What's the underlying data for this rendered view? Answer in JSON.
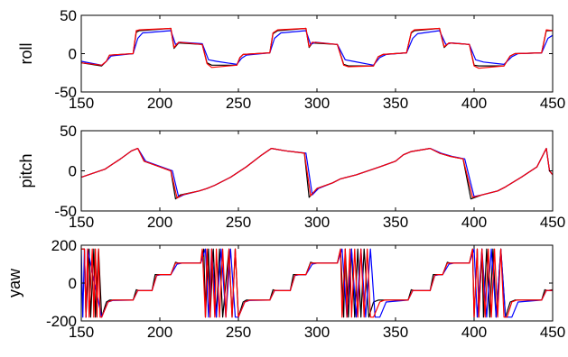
{
  "chart_data": [
    {
      "type": "line",
      "ylabel": "roll",
      "xlim": [
        150,
        450
      ],
      "ylim": [
        -50,
        50
      ],
      "xticks": [
        150,
        200,
        250,
        300,
        350,
        400,
        450
      ],
      "yticks": [
        -50,
        0,
        50
      ],
      "grid": false,
      "series": [
        {
          "color": "#000000",
          "x": [
            150,
            163,
            166,
            168,
            183,
            185,
            187,
            207,
            209,
            212,
            227,
            230,
            233,
            249,
            251,
            253,
            270,
            272,
            275,
            293,
            295,
            297,
            313,
            317,
            320,
            336,
            339,
            342,
            357,
            360,
            362,
            378,
            381,
            384,
            397,
            400,
            403,
            419,
            423,
            426,
            443,
            446,
            450
          ],
          "y": [
            -12,
            -16,
            -10,
            -2,
            0,
            28,
            30,
            33,
            7,
            14,
            12,
            -12,
            -15,
            -15,
            -5,
            -1,
            1,
            26,
            30,
            33,
            8,
            14,
            12,
            -14,
            -16,
            -16,
            -4,
            -1,
            1,
            27,
            30,
            33,
            8,
            14,
            12,
            -15,
            -16,
            -16,
            -3,
            0,
            1,
            30,
            30
          ]
        },
        {
          "color": "#0000ff",
          "x": [
            150,
            163,
            166,
            169,
            183,
            186,
            189,
            207,
            210,
            213,
            227,
            231,
            236,
            249,
            252,
            255,
            270,
            273,
            277,
            293,
            296,
            299,
            313,
            318,
            323,
            336,
            340,
            344,
            357,
            361,
            364,
            378,
            382,
            386,
            397,
            401,
            406,
            419,
            424,
            428,
            443,
            447,
            450
          ],
          "y": [
            -10,
            -15,
            -10,
            -3,
            0,
            20,
            27,
            30,
            12,
            15,
            13,
            -8,
            -10,
            -14,
            -6,
            -2,
            1,
            20,
            27,
            30,
            12,
            15,
            12,
            -8,
            -10,
            -15,
            -5,
            -1,
            1,
            20,
            26,
            30,
            12,
            14,
            12,
            -8,
            -11,
            -14,
            -4,
            0,
            1,
            20,
            24
          ]
        },
        {
          "color": "#ff0000",
          "x": [
            150,
            163,
            166,
            168,
            183,
            185,
            187,
            207,
            209,
            212,
            227,
            230,
            233,
            249,
            251,
            253,
            270,
            272,
            275,
            293,
            295,
            297,
            313,
            317,
            320,
            336,
            339,
            342,
            357,
            360,
            362,
            378,
            381,
            384,
            397,
            400,
            403,
            419,
            423,
            426,
            443,
            446,
            450
          ],
          "y": [
            -12,
            -15,
            -10,
            -2,
            0,
            30,
            31,
            33,
            8,
            15,
            12,
            -13,
            -18,
            -15,
            -5,
            -1,
            1,
            27,
            31,
            33,
            9,
            15,
            12,
            -15,
            -17,
            -16,
            -4,
            -1,
            1,
            28,
            31,
            33,
            9,
            14,
            12,
            -16,
            -19,
            -16,
            -3,
            0,
            1,
            31,
            30
          ]
        }
      ]
    },
    {
      "type": "line",
      "ylabel": "pitch",
      "xlim": [
        150,
        450
      ],
      "ylim": [
        -50,
        50
      ],
      "xticks": [
        150,
        200,
        250,
        300,
        350,
        400,
        450
      ],
      "yticks": [
        -50,
        0,
        50
      ],
      "grid": false,
      "series": [
        {
          "color": "#000000",
          "x": [
            150,
            165,
            175,
            182,
            186,
            190,
            200,
            207,
            210,
            213,
            225,
            230,
            235,
            245,
            255,
            265,
            271,
            280,
            292,
            295,
            300,
            310,
            315,
            325,
            340,
            350,
            355,
            360,
            372,
            378,
            385,
            393,
            398,
            405,
            415,
            420,
            430,
            440,
            446,
            448,
            450
          ],
          "y": [
            -8,
            2,
            15,
            25,
            28,
            12,
            5,
            0,
            -35,
            -30,
            -25,
            -22,
            -18,
            -8,
            5,
            20,
            28,
            25,
            22,
            -33,
            -22,
            -15,
            -10,
            -5,
            5,
            12,
            20,
            24,
            28,
            22,
            18,
            15,
            -35,
            -30,
            -25,
            -20,
            -8,
            5,
            28,
            0,
            -5
          ]
        },
        {
          "color": "#0000ff",
          "x": [
            150,
            165,
            175,
            182,
            186,
            191,
            201,
            208,
            212,
            215,
            225,
            230,
            235,
            245,
            255,
            265,
            271,
            280,
            293,
            297,
            301,
            310,
            315,
            325,
            340,
            350,
            355,
            360,
            372,
            379,
            386,
            394,
            400,
            405,
            415,
            420,
            430,
            440,
            446,
            448,
            450
          ],
          "y": [
            -8,
            2,
            15,
            25,
            28,
            12,
            5,
            0,
            -33,
            -30,
            -25,
            -22,
            -18,
            -8,
            5,
            20,
            28,
            25,
            22,
            -30,
            -22,
            -15,
            -10,
            -5,
            5,
            12,
            20,
            24,
            28,
            22,
            18,
            15,
            -32,
            -30,
            -25,
            -20,
            -8,
            5,
            28,
            0,
            -5
          ]
        },
        {
          "color": "#ff0000",
          "x": [
            150,
            165,
            175,
            182,
            186,
            190,
            200,
            207,
            211,
            214,
            225,
            230,
            235,
            245,
            255,
            265,
            271,
            280,
            292,
            296,
            300,
            310,
            315,
            325,
            340,
            350,
            355,
            360,
            372,
            378,
            385,
            393,
            399,
            405,
            415,
            420,
            430,
            440,
            446,
            448,
            450
          ],
          "y": [
            -8,
            2,
            15,
            25,
            28,
            12,
            5,
            0,
            -34,
            -30,
            -25,
            -22,
            -18,
            -8,
            5,
            20,
            28,
            25,
            22,
            -31,
            -22,
            -15,
            -10,
            -5,
            5,
            12,
            20,
            24,
            28,
            22,
            18,
            15,
            -33,
            -30,
            -25,
            -20,
            -8,
            5,
            28,
            0,
            -5
          ]
        }
      ]
    },
    {
      "type": "line",
      "ylabel": "yaw",
      "xlim": [
        150,
        450
      ],
      "ylim": [
        -200,
        200
      ],
      "xticks": [
        150,
        200,
        250,
        300,
        350,
        400,
        450
      ],
      "yticks": [
        -200,
        0,
        200
      ],
      "grid": false,
      "series": [
        {
          "color": "#000000",
          "x": [
            150,
            152,
            153,
            155,
            156,
            158,
            159,
            161,
            163,
            166,
            168,
            183,
            185,
            187,
            195,
            197,
            199,
            207,
            210,
            212,
            226,
            228,
            229,
            231,
            232,
            234,
            236,
            238,
            240,
            244,
            246,
            248,
            250,
            253,
            255,
            258,
            270,
            272,
            274,
            283,
            285,
            287,
            293,
            296,
            298,
            313,
            315,
            317,
            318,
            320,
            322,
            324,
            326,
            328,
            330,
            333,
            336,
            339,
            342,
            358,
            360,
            362,
            372,
            374,
            376,
            380,
            383,
            385,
            397,
            399,
            400,
            402,
            403,
            405,
            406,
            408,
            410,
            412,
            414,
            417,
            420,
            423,
            426,
            428,
            443,
            445,
            447,
            450
          ],
          "y": [
            180,
            180,
            -180,
            180,
            -180,
            180,
            -180,
            180,
            -180,
            -100,
            -90,
            -90,
            -35,
            -40,
            -40,
            45,
            45,
            45,
            110,
            105,
            105,
            180,
            -180,
            180,
            -180,
            180,
            -180,
            180,
            -180,
            180,
            -180,
            180,
            -180,
            -100,
            -90,
            -90,
            -90,
            -35,
            -40,
            -40,
            45,
            45,
            45,
            110,
            105,
            105,
            180,
            -180,
            180,
            -180,
            180,
            -180,
            180,
            -180,
            180,
            -180,
            -100,
            -90,
            -90,
            -90,
            -35,
            -40,
            -40,
            45,
            45,
            45,
            110,
            105,
            105,
            180,
            -180,
            180,
            -180,
            180,
            -180,
            180,
            -180,
            180,
            -180,
            180,
            -180,
            -100,
            -90,
            -90,
            -90,
            -35,
            -40,
            -35
          ]
        },
        {
          "color": "#0000ff",
          "x": [
            150,
            151,
            152,
            153,
            154,
            163,
            167,
            170,
            183,
            186,
            189,
            195,
            198,
            201,
            207,
            211,
            214,
            226,
            229,
            231,
            233,
            236,
            239,
            242,
            245,
            248,
            250,
            254,
            257,
            270,
            273,
            276,
            283,
            286,
            289,
            293,
            297,
            300,
            313,
            316,
            319,
            322,
            325,
            328,
            331,
            334,
            337,
            340,
            344,
            358,
            361,
            364,
            372,
            375,
            378,
            380,
            384,
            387,
            397,
            400,
            402,
            405,
            408,
            411,
            414,
            417,
            420,
            424,
            428,
            443,
            446,
            449,
            450
          ],
          "y": [
            180,
            -180,
            180,
            -180,
            180,
            -180,
            -100,
            -92,
            -90,
            -40,
            -40,
            -40,
            40,
            45,
            45,
            100,
            105,
            105,
            180,
            -180,
            180,
            -180,
            180,
            -180,
            180,
            -180,
            -180,
            -100,
            -92,
            -90,
            -40,
            -40,
            -40,
            40,
            45,
            45,
            100,
            105,
            105,
            180,
            -180,
            180,
            -180,
            180,
            -180,
            180,
            -180,
            -180,
            -100,
            -90,
            -40,
            -40,
            -40,
            40,
            45,
            45,
            100,
            105,
            105,
            180,
            -180,
            180,
            -180,
            180,
            -180,
            180,
            -180,
            -180,
            -100,
            -90,
            -40,
            -40,
            -38
          ]
        },
        {
          "color": "#ff0000",
          "x": [
            150,
            152,
            153,
            154,
            155,
            157,
            158,
            159,
            160,
            161,
            162,
            163,
            167,
            170,
            183,
            186,
            188,
            195,
            198,
            200,
            207,
            210,
            213,
            226,
            227,
            229,
            230,
            232,
            233,
            235,
            236,
            238,
            240,
            242,
            244,
            246,
            248,
            250,
            254,
            257,
            270,
            273,
            276,
            283,
            286,
            288,
            293,
            296,
            299,
            313,
            315,
            316,
            318,
            319,
            321,
            322,
            324,
            326,
            328,
            330,
            332,
            334,
            336,
            340,
            343,
            358,
            361,
            363,
            372,
            375,
            377,
            380,
            383,
            386,
            397,
            399,
            400,
            402,
            403,
            405,
            407,
            409,
            411,
            413,
            415,
            417,
            419,
            421,
            424,
            427,
            443,
            446,
            448,
            450
          ],
          "y": [
            180,
            180,
            -180,
            180,
            -180,
            180,
            -180,
            180,
            -180,
            180,
            -180,
            -180,
            -100,
            -90,
            -90,
            -38,
            -40,
            -40,
            42,
            45,
            45,
            105,
            105,
            105,
            180,
            -180,
            180,
            -180,
            180,
            -180,
            180,
            -180,
            180,
            -180,
            180,
            -180,
            180,
            -180,
            -100,
            -90,
            -90,
            -38,
            -40,
            -40,
            42,
            45,
            45,
            105,
            105,
            105,
            180,
            -180,
            180,
            -180,
            180,
            -180,
            180,
            -180,
            180,
            -180,
            180,
            -180,
            -180,
            -100,
            -90,
            -90,
            -38,
            -40,
            -40,
            42,
            45,
            45,
            105,
            105,
            105,
            180,
            -180,
            180,
            -180,
            180,
            -180,
            180,
            -180,
            180,
            -180,
            180,
            -180,
            -180,
            -100,
            -90,
            -90,
            -38,
            -40,
            -38
          ]
        }
      ]
    }
  ]
}
